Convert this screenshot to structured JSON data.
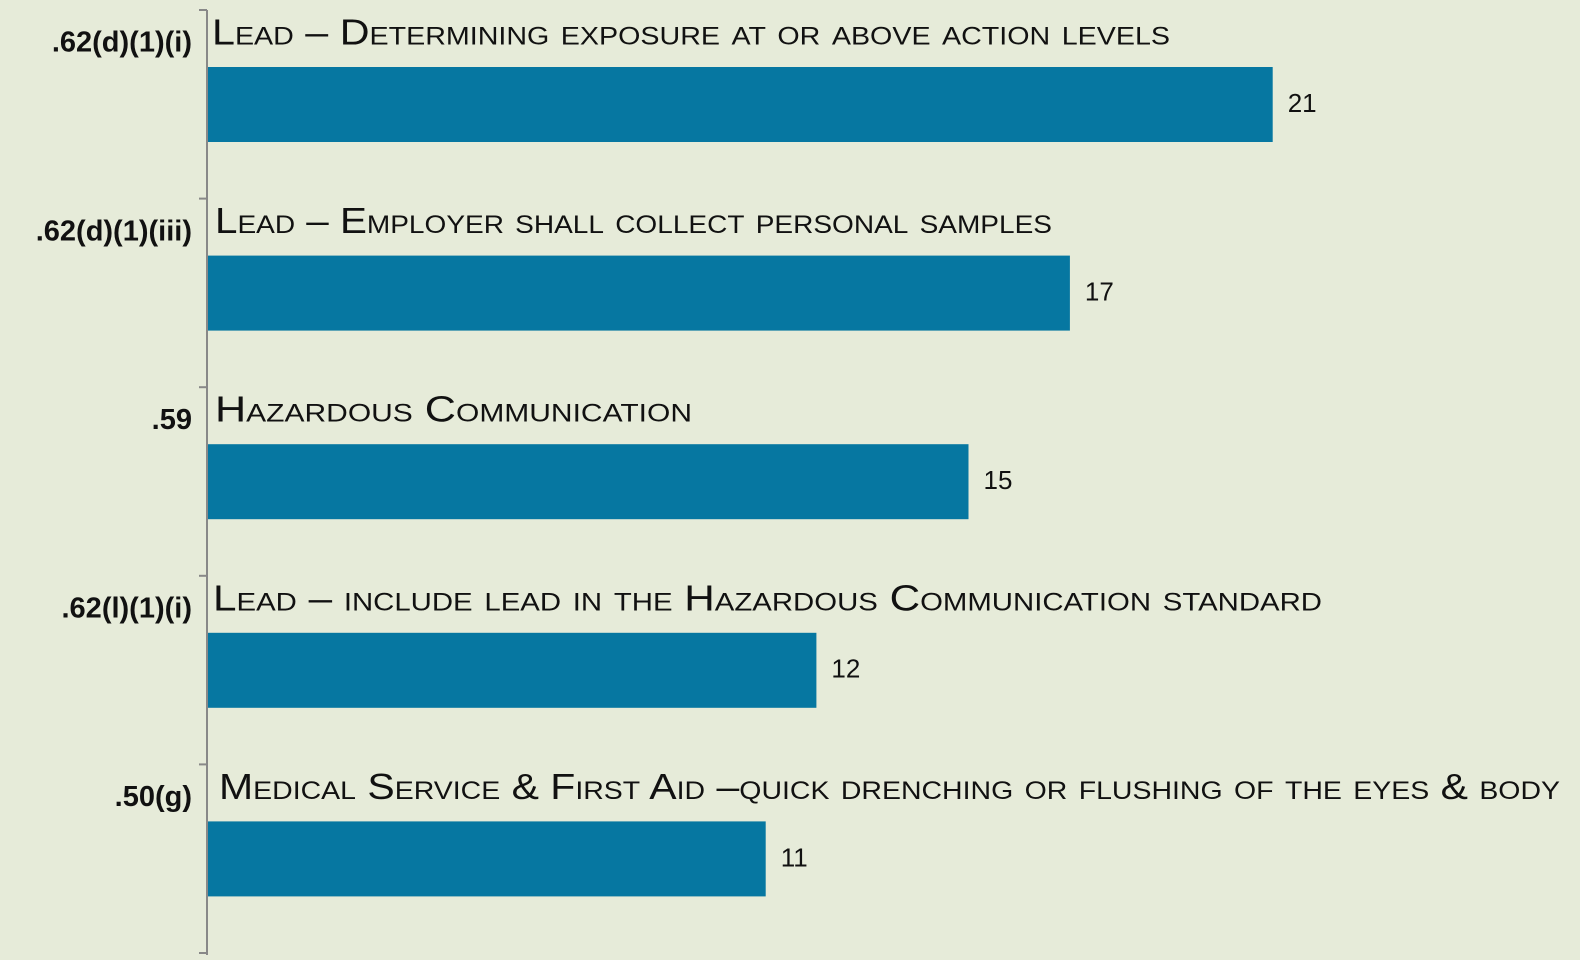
{
  "chart_data": {
    "type": "bar",
    "orientation": "horizontal",
    "categories": [
      ".62(d)(1)(i)",
      ".62(d)(1)(iii)",
      ".59",
      ".62(l)(1)(i)",
      ".50(g)"
    ],
    "annotations": [
      "Lead – Determining exposure at or above action levels",
      "Lead – Employer shall collect personal samples",
      "Hazardous Communication",
      "Lead – include lead in the Hazardous Communication standard",
      "Medical Service & First Aid –quick drenching or flushing of the eyes & body"
    ],
    "values": [
      21,
      17,
      15,
      12,
      11
    ],
    "color": "#0677a1"
  }
}
